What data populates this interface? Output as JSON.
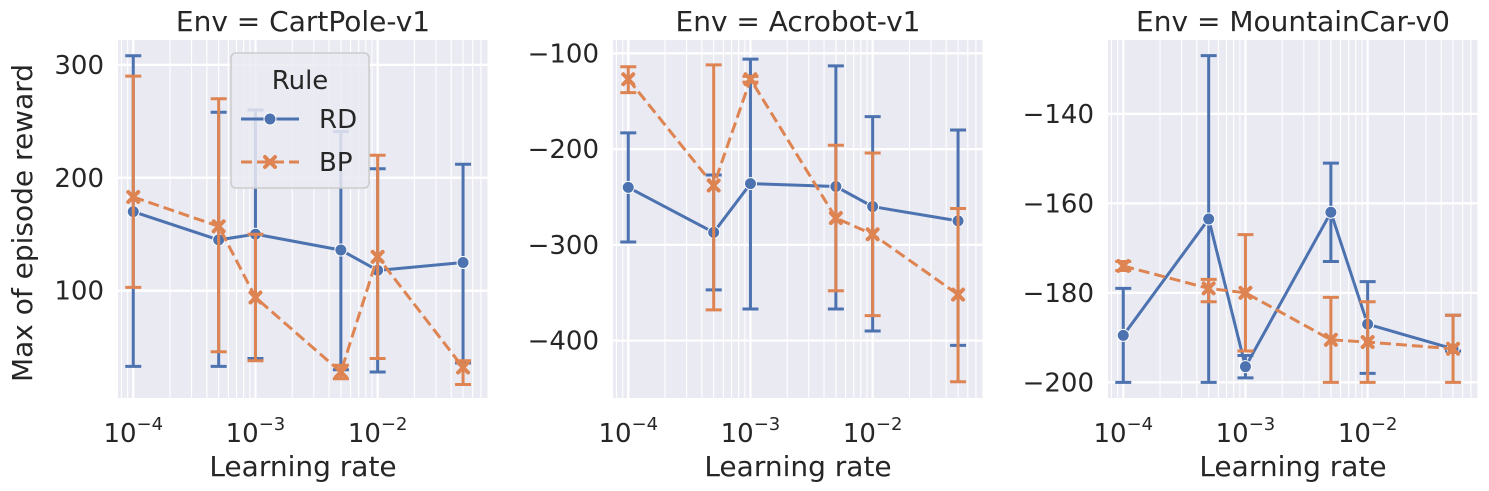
{
  "figure": {
    "ylabel": "Max of episode reward",
    "legend": {
      "title": "Rule",
      "entries": [
        "RD",
        "BP"
      ],
      "placement": "upper-right of first panel"
    }
  },
  "colors": {
    "RD": "#4C72B0",
    "BP": "#DD8452",
    "background": "#EAEAF2",
    "grid": "#FFFFFF"
  },
  "chart_data": [
    {
      "type": "line",
      "title": "Env = CartPole-v1",
      "xlabel": "Learning rate",
      "ylabel": "Max of episode reward",
      "xscale": "log",
      "xlim": [
        7.5e-05,
        0.08
      ],
      "ylim": [
        5,
        322
      ],
      "x": [
        0.0001,
        0.0005,
        0.001,
        0.005,
        0.01,
        0.05
      ],
      "xticks": [
        {
          "v": 0.0001,
          "exp": "−4"
        },
        {
          "v": 0.001,
          "exp": "−3"
        },
        {
          "v": 0.01,
          "exp": "−2"
        }
      ],
      "yticks": [
        {
          "v": 100,
          "label": "100"
        },
        {
          "v": 200,
          "label": "200"
        },
        {
          "v": 300,
          "label": "300"
        }
      ],
      "grid": true,
      "series": [
        {
          "name": "RD",
          "marker": "circle",
          "dash": "solid",
          "values": [
            170,
            145,
            150,
            136,
            118,
            125
          ],
          "err_low": [
            33,
            33,
            40,
            30,
            28,
            36
          ],
          "err_high": [
            308,
            258,
            260,
            241,
            208,
            212
          ]
        },
        {
          "name": "BP",
          "marker": "x",
          "dash": "dashed",
          "values": [
            183,
            157,
            94,
            28,
            130,
            32
          ],
          "err_low": [
            103,
            46,
            38,
            22,
            40,
            17
          ],
          "err_high": [
            290,
            270,
            150,
            34,
            220,
            38
          ]
        }
      ]
    },
    {
      "type": "line",
      "title": "Env = Acrobot-v1",
      "xlabel": "Learning rate",
      "xscale": "log",
      "xlim": [
        7.5e-05,
        0.08
      ],
      "ylim": [
        -460,
        -86
      ],
      "x": [
        0.0001,
        0.0005,
        0.001,
        0.005,
        0.01,
        0.05
      ],
      "xticks": [
        {
          "v": 0.0001,
          "exp": "−4"
        },
        {
          "v": 0.001,
          "exp": "−3"
        },
        {
          "v": 0.01,
          "exp": "−2"
        }
      ],
      "yticks": [
        {
          "v": -100,
          "label": "−100"
        },
        {
          "v": -200,
          "label": "−200"
        },
        {
          "v": -300,
          "label": "−300"
        },
        {
          "v": -400,
          "label": "−400"
        }
      ],
      "grid": true,
      "series": [
        {
          "name": "RD",
          "marker": "circle",
          "dash": "solid",
          "values": [
            -240,
            -287,
            -236,
            -239,
            -260,
            -275
          ],
          "err_low": [
            -297,
            -347,
            -367,
            -367,
            -390,
            -405
          ],
          "err_high": [
            -183,
            -227,
            -106,
            -113,
            -166,
            -180
          ]
        },
        {
          "name": "BP",
          "marker": "x",
          "dash": "dashed",
          "values": [
            -127,
            -238,
            -127,
            -272,
            -289,
            -352
          ],
          "err_low": [
            -141,
            -368,
            -130,
            -348,
            -374,
            -443
          ],
          "err_high": [
            -114,
            -112,
            -124,
            -196,
            -204,
            -262
          ]
        }
      ]
    },
    {
      "type": "line",
      "title": "Env = MountainCar-v0",
      "xlabel": "Learning rate",
      "xscale": "log",
      "xlim": [
        7.5e-05,
        0.08
      ],
      "ylim": [
        -203.5,
        -123.5
      ],
      "x": [
        0.0001,
        0.0005,
        0.001,
        0.005,
        0.01,
        0.05
      ],
      "xticks": [
        {
          "v": 0.0001,
          "exp": "−4"
        },
        {
          "v": 0.001,
          "exp": "−3"
        },
        {
          "v": 0.01,
          "exp": "−2"
        }
      ],
      "yticks": [
        {
          "v": -140,
          "label": "−140"
        },
        {
          "v": -160,
          "label": "−160"
        },
        {
          "v": -180,
          "label": "−180"
        },
        {
          "v": -200,
          "label": "−200"
        }
      ],
      "grid": true,
      "series": [
        {
          "name": "RD",
          "marker": "circle",
          "dash": "solid",
          "values": [
            -189.5,
            -163.5,
            -196.5,
            -162,
            -187,
            -192.5
          ],
          "err_low": [
            -200,
            -200,
            -199,
            -173,
            -198,
            -193
          ],
          "err_high": [
            -179,
            -127,
            -194,
            -151,
            -177.5,
            -185
          ]
        },
        {
          "name": "BP",
          "marker": "x",
          "dash": "dashed",
          "values": [
            -174,
            -179,
            -180,
            -190.5,
            -191,
            -192.5
          ],
          "err_low": [
            -175,
            -182,
            -193,
            -200,
            -200,
            -200
          ],
          "err_high": [
            -173,
            -177,
            -167,
            -181,
            -182,
            -185
          ]
        }
      ]
    }
  ]
}
